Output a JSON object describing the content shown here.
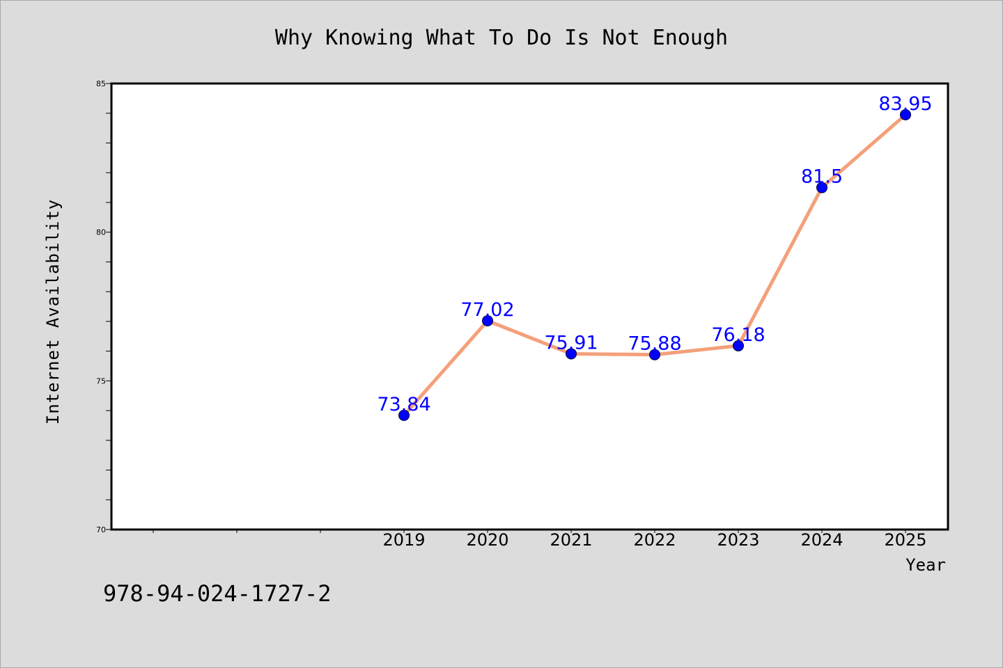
{
  "chart_data": {
    "type": "line",
    "title": "Why Knowing What To Do Is Not Enough",
    "xlabel": "Year",
    "ylabel": "Internet Availability",
    "x": [
      "2019",
      "2020",
      "2021",
      "2022",
      "2023",
      "2024",
      "2025"
    ],
    "series": [
      {
        "values": [
          73.84,
          77.02,
          75.91,
          75.88,
          76.18,
          81.5,
          83.95
        ],
        "labels": [
          "73.84",
          "77.02",
          "75.91",
          "75.88",
          "76.18",
          "81.5",
          "83.95"
        ],
        "line_color": "#f4a07a",
        "marker_color": "#0000ff"
      }
    ],
    "ylim": [
      70,
      85
    ],
    "y_ticks": [
      "70",
      "75",
      "80",
      "85"
    ],
    "x_slots": 10,
    "grid": false,
    "data_label_color": "#0000ff"
  },
  "footer": {
    "isbn": "978-94-024-1727-2"
  }
}
